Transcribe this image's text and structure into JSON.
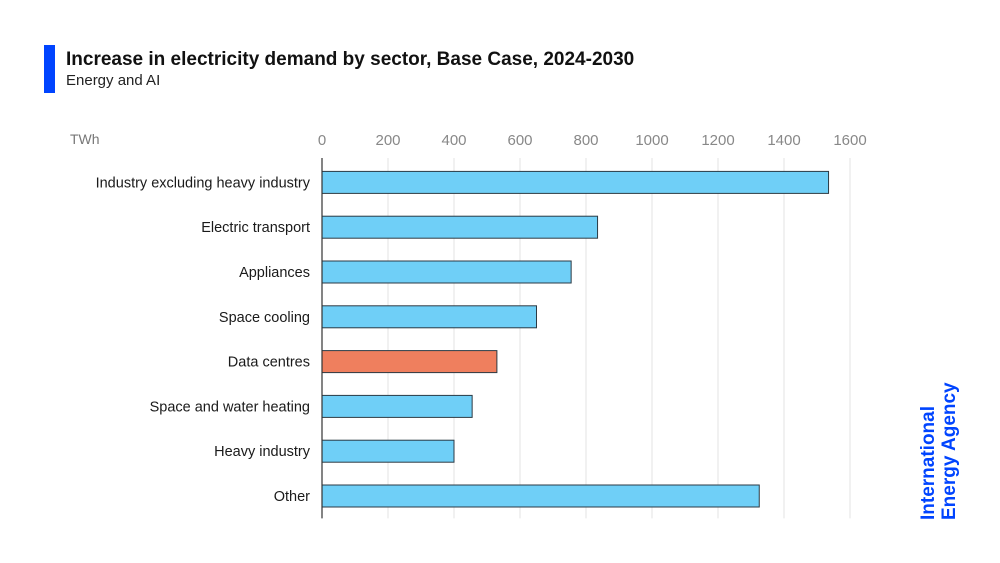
{
  "header": {
    "title": "Increase in electricity demand by sector, Base Case, 2024-2030",
    "subtitle": "Energy and AI"
  },
  "brand": {
    "line1": "International",
    "line2": "Energy Agency",
    "color": "#0044ff"
  },
  "chart_data": {
    "type": "bar",
    "orientation": "horizontal",
    "title": "Increase in electricity demand by sector, Base Case, 2024-2030",
    "subtitle": "Energy and AI",
    "xlabel": "TWh",
    "ylabel": "",
    "xlim": [
      0,
      1600
    ],
    "ticks": [
      0,
      200,
      400,
      600,
      800,
      1000,
      1200,
      1400,
      1600
    ],
    "grid": true,
    "categories": [
      "Industry excluding heavy industry",
      "Electric transport",
      "Appliances",
      "Space cooling",
      "Data centres",
      "Space and water heating",
      "Heavy industry",
      "Other"
    ],
    "values": [
      1535,
      835,
      755,
      650,
      530,
      455,
      400,
      1325
    ],
    "colors": [
      "#6fcff7",
      "#6fcff7",
      "#6fcff7",
      "#6fcff7",
      "#ef7f5e",
      "#6fcff7",
      "#6fcff7",
      "#6fcff7"
    ],
    "highlight": "Data centres"
  }
}
